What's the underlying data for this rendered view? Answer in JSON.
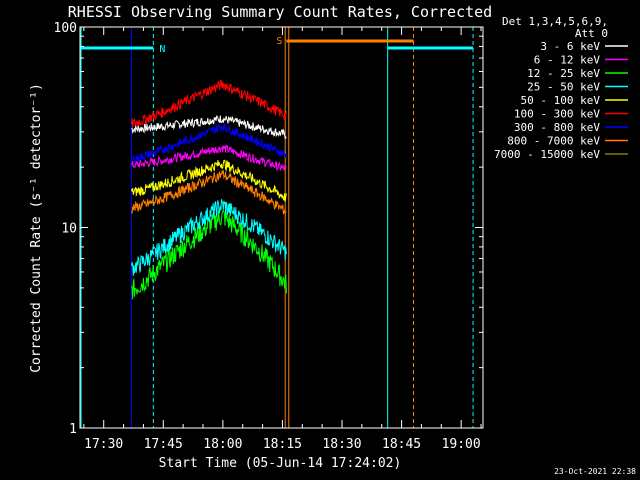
{
  "chart_data": {
    "type": "line",
    "title": "RHESSI Observing Summary Count Rates, Corrected",
    "xlabel": "Start Time (05-Jun-14 17:24:02)",
    "ylabel": "Corrected Count Rate (s⁻¹ detector⁻¹)",
    "yscale": "log",
    "ylim": [
      1,
      100
    ],
    "xlim_minutes": [
      1044.03,
      1145.5
    ],
    "x_ticks": [
      {
        "label": "17:30",
        "minutes": 1050
      },
      {
        "label": "17:45",
        "minutes": 1065
      },
      {
        "label": "18:00",
        "minutes": 1080
      },
      {
        "label": "18:15",
        "minutes": 1095
      },
      {
        "label": "18:30",
        "minutes": 1110
      },
      {
        "label": "18:45",
        "minutes": 1125
      },
      {
        "label": "19:00",
        "minutes": 1140
      }
    ],
    "y_ticks": [
      {
        "label": "1",
        "value": 1
      },
      {
        "label": "10",
        "value": 10
      },
      {
        "label": "100",
        "value": 100
      }
    ],
    "legend_header": [
      "Det 1,3,4,5,6,9,",
      "Att 0"
    ],
    "legend_position": "right",
    "data_time_range_minutes": [
      1057.0,
      1096.0
    ],
    "series": [
      {
        "name": "3 - 6 keV",
        "color": "#ffffff",
        "start": 31.0,
        "peak": 35.0,
        "end": 29.0,
        "noise": 0.05
      },
      {
        "name": "6 - 12 keV",
        "color": "#ff00ff",
        "start": 20.5,
        "peak": 25.0,
        "end": 19.5,
        "noise": 0.05
      },
      {
        "name": "12 - 25 keV",
        "color": "#00ff00",
        "start": 4.9,
        "peak": 11.5,
        "end": 5.2,
        "noise": 0.12
      },
      {
        "name": "25 - 50 keV",
        "color": "#00ffff",
        "start": 6.3,
        "peak": 13.0,
        "end": 7.5,
        "noise": 0.1
      },
      {
        "name": "50 - 100 keV",
        "color": "#ffff00",
        "start": 15.0,
        "peak": 21.0,
        "end": 14.0,
        "noise": 0.06
      },
      {
        "name": "100 - 300 keV",
        "color": "#ff0000",
        "start": 33.0,
        "peak": 52.0,
        "end": 36.0,
        "noise": 0.06
      },
      {
        "name": "300 - 800 keV",
        "color": "#0000ff",
        "start": 22.0,
        "peak": 32.0,
        "end": 23.0,
        "noise": 0.05
      },
      {
        "name": "800 - 7000 keV",
        "color": "#ff8000",
        "start": 12.5,
        "peak": 18.5,
        "end": 12.0,
        "noise": 0.06
      },
      {
        "name": "7000 - 15000 keV",
        "color": "#808000",
        "start": 0,
        "peak": 0,
        "end": 0,
        "noise": 0
      }
    ],
    "annotations": [
      {
        "type": "night",
        "label": "N",
        "color": "#00ffff",
        "intervals": [
          [
            1044.03,
            1062.5
          ],
          [
            1121.5,
            1143.0
          ]
        ]
      },
      {
        "type": "saa",
        "label": "S",
        "color": "#ff8000",
        "intervals": [
          [
            1096.0,
            1128.0
          ]
        ]
      }
    ],
    "vertical_lines": [
      {
        "minutes": 1044.3,
        "color": "#00ffff",
        "style": "solid"
      },
      {
        "minutes": 1057.0,
        "color": "#0000ff",
        "style": "solid"
      },
      {
        "minutes": 1062.5,
        "color": "#00ffff",
        "style": "dashed"
      },
      {
        "minutes": 1095.7,
        "color": "#ff8000",
        "style": "solid"
      },
      {
        "minutes": 1096.6,
        "color": "#ff8000",
        "style": "solid"
      },
      {
        "minutes": 1121.5,
        "color": "#00ffff",
        "style": "solid"
      },
      {
        "minutes": 1128.0,
        "color": "#ff8000",
        "style": "dashed"
      },
      {
        "minutes": 1143.0,
        "color": "#00ffff",
        "style": "dashed"
      }
    ],
    "footer": "23-Oct-2021 22:38"
  }
}
